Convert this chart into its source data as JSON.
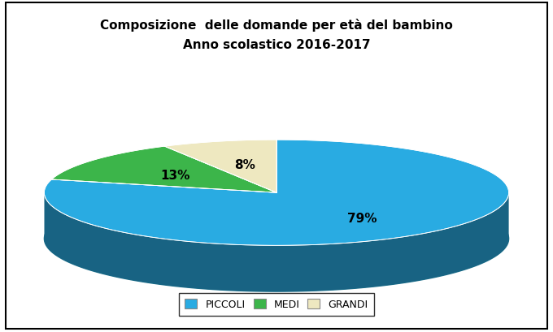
{
  "title_line1": "Composizione  delle domande per età del bambino",
  "title_line2": "Anno scolastico 2016-2017",
  "slices": [
    79,
    13,
    8
  ],
  "labels": [
    "79%",
    "13%",
    "8%"
  ],
  "colors": [
    "#29ABE2",
    "#3CB54A",
    "#EEE8C0"
  ],
  "shadow_color": "#1A6E8A",
  "legend_labels": [
    "PICCOLI",
    "MEDI",
    "GRANDI"
  ],
  "legend_colors": [
    "#29ABE2",
    "#3CB54A",
    "#EEE8C0"
  ],
  "background_color": "#FFFFFF",
  "title_fontsize": 11,
  "label_fontsize": 11,
  "legend_fontsize": 9,
  "startangle": 90
}
